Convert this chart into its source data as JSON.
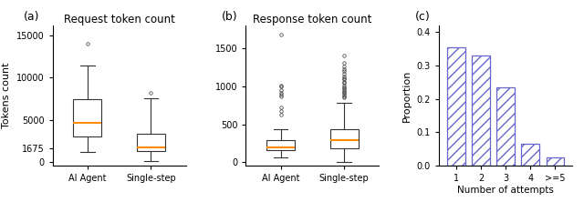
{
  "panel_a_title": "Request token count",
  "panel_b_title": "Response token count",
  "panel_c_label": "(c)",
  "panel_a_label": "(a)",
  "panel_b_label": "(b)",
  "ylabel_a": "Tokens count",
  "ylabel_c": "Proportion",
  "xlabel_c": "Number of attempts",
  "xtick_labels_ab": [
    "AI Agent",
    "Single-step"
  ],
  "xtick_labels_c": [
    "1",
    "2",
    "3",
    "4",
    ">=5"
  ],
  "a_yticks": [
    0,
    1675,
    5000,
    10000,
    15000
  ],
  "b_yticks": [
    0,
    500,
    1000,
    1500
  ],
  "c_yticks": [
    0.0,
    0.1,
    0.2,
    0.3,
    0.4
  ],
  "box_a_ai": {
    "med": 4600,
    "q1": 3000,
    "q3": 7500,
    "whislo": 1200,
    "whishi": 11500,
    "fliers": [
      14000
    ]
  },
  "box_a_ss": {
    "med": 1750,
    "q1": 1300,
    "q3": 3300,
    "whislo": 100,
    "whishi": 7600,
    "fliers": [
      8200
    ]
  },
  "box_b_ai": {
    "med": 200,
    "q1": 155,
    "q3": 290,
    "whislo": 60,
    "whishi": 430,
    "fliers": [
      630,
      680,
      720,
      870,
      890,
      920,
      950,
      1000,
      1010,
      1680
    ]
  },
  "box_b_ss": {
    "med": 290,
    "q1": 180,
    "q3": 430,
    "whislo": 0,
    "whishi": 780,
    "fliers": [
      850,
      870,
      890,
      910,
      930,
      950,
      970,
      990,
      1010,
      1040,
      1060,
      1090,
      1110,
      1130,
      1160,
      1200,
      1230,
      1260,
      1310,
      1400
    ]
  },
  "c_values": [
    0.355,
    0.33,
    0.235,
    0.065,
    0.025
  ],
  "bar_color": "#6666cc",
  "median_color": "#ff8c00",
  "box_edgecolor": "#333333",
  "flier_color": "#333333",
  "figsize": [
    6.4,
    2.33
  ],
  "dpi": 100
}
